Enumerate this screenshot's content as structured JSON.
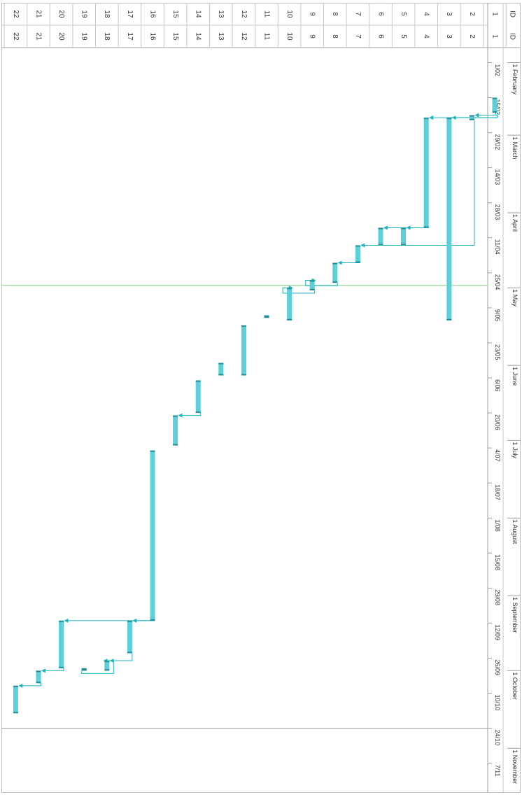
{
  "column_header": "ID",
  "chart_data": {
    "type": "gantt",
    "orientation": "rotated-90-clockwise",
    "rows": [
      "1",
      "2",
      "3",
      "4",
      "5",
      "6",
      "7",
      "8",
      "9",
      "10",
      "11",
      "12",
      "13",
      "14",
      "15",
      "16",
      "17",
      "18",
      "19",
      "20",
      "21",
      "22"
    ],
    "month_labels": [
      "1 February",
      "1 March",
      "1 April",
      "1 May",
      "1 June",
      "1 July",
      "1 August",
      "1 September",
      "1 October",
      "1 November"
    ],
    "month_dates": [
      "2024-02-01",
      "2024-03-01",
      "2024-04-01",
      "2024-05-01",
      "2024-06-01",
      "2024-07-01",
      "2024-08-01",
      "2024-09-01",
      "2024-10-01",
      "2024-11-01"
    ],
    "week_ticks": [
      "1/02",
      "15/02",
      "29/02",
      "14/03",
      "28/03",
      "11/04",
      "25/04",
      "9/05",
      "23/05",
      "6/06",
      "20/06",
      "4/07",
      "18/07",
      "1/08",
      "15/08",
      "29/08",
      "12/09",
      "26/09",
      "10/10",
      "24/10",
      "7/11"
    ],
    "week_dates": [
      "2024-02-01",
      "2024-02-15",
      "2024-02-29",
      "2024-03-14",
      "2024-03-28",
      "2024-04-11",
      "2024-04-25",
      "2024-05-09",
      "2024-05-23",
      "2024-06-06",
      "2024-06-20",
      "2024-07-04",
      "2024-07-18",
      "2024-08-01",
      "2024-08-15",
      "2024-08-29",
      "2024-09-12",
      "2024-09-26",
      "2024-10-10",
      "2024-10-24",
      "2024-11-07"
    ],
    "x_range": [
      "2024-01-26",
      "2024-11-18"
    ],
    "tasks": [
      {
        "id": "1",
        "start": "2024-02-15",
        "end": "2024-02-21"
      },
      {
        "id": "2",
        "start": "2024-02-22",
        "end": "2024-02-24"
      },
      {
        "id": "3",
        "start": "2024-02-23",
        "end": "2024-05-14"
      },
      {
        "id": "4",
        "start": "2024-02-23",
        "end": "2024-04-07"
      },
      {
        "id": "5",
        "start": "2024-04-07",
        "end": "2024-04-14"
      },
      {
        "id": "6",
        "start": "2024-04-07",
        "end": "2024-04-14"
      },
      {
        "id": "7",
        "start": "2024-04-14",
        "end": "2024-04-21"
      },
      {
        "id": "8",
        "start": "2024-04-21",
        "end": "2024-04-29"
      },
      {
        "id": "9",
        "start": "2024-04-28",
        "end": "2024-05-02"
      },
      {
        "id": "10",
        "start": "2024-05-01",
        "end": "2024-05-14"
      },
      {
        "id": "11",
        "start": "2024-05-12",
        "end": "2024-05-13"
      },
      {
        "id": "12",
        "start": "2024-05-16",
        "end": "2024-06-05"
      },
      {
        "id": "13",
        "start": "2024-05-31",
        "end": "2024-06-05"
      },
      {
        "id": "14",
        "start": "2024-06-07",
        "end": "2024-06-20"
      },
      {
        "id": "15",
        "start": "2024-06-21",
        "end": "2024-07-03"
      },
      {
        "id": "16",
        "start": "2024-07-05",
        "end": "2024-09-11"
      },
      {
        "id": "17",
        "start": "2024-09-11",
        "end": "2024-09-24"
      },
      {
        "id": "18",
        "start": "2024-09-27",
        "end": "2024-10-01"
      },
      {
        "id": "19",
        "start": "2024-09-30",
        "end": "2024-10-01"
      },
      {
        "id": "20",
        "start": "2024-09-11",
        "end": "2024-09-30"
      },
      {
        "id": "21",
        "start": "2024-10-01",
        "end": "2024-10-06"
      },
      {
        "id": "22",
        "start": "2024-10-07",
        "end": "2024-10-18"
      }
    ],
    "dependencies": [
      {
        "from": "1",
        "to": "2"
      },
      {
        "from": "1",
        "to": "3"
      },
      {
        "from": "1",
        "to": "4"
      },
      {
        "from": "2",
        "to": "7"
      },
      {
        "from": "4",
        "to": "5"
      },
      {
        "from": "4",
        "to": "6"
      },
      {
        "from": "7",
        "to": "8"
      },
      {
        "from": "8",
        "to": "9"
      },
      {
        "from": "9",
        "to": "10"
      },
      {
        "from": "14",
        "to": "15"
      },
      {
        "from": "16",
        "to": "17"
      },
      {
        "from": "16",
        "to": "20"
      },
      {
        "from": "17",
        "to": "18"
      },
      {
        "from": "19",
        "to": "18"
      },
      {
        "from": "20",
        "to": "21"
      },
      {
        "from": "21",
        "to": "22"
      }
    ],
    "today": "2024-04-30",
    "status_date": "2024-10-24",
    "bar_color": "#5ccfd9",
    "bar_edge_color": "#1f8f99",
    "link_color": "#17b3bf",
    "today_line_color": "#a8dca8",
    "status_line_color": "#9a9a9a"
  }
}
